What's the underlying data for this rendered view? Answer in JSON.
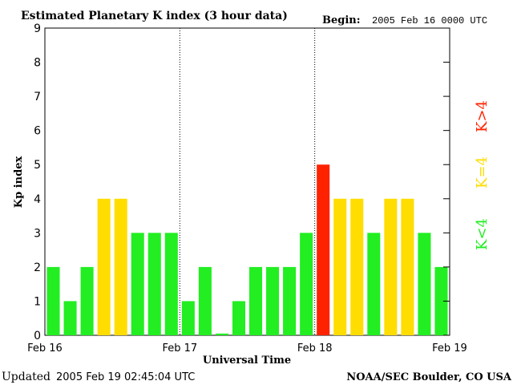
{
  "chart_data": {
    "type": "bar",
    "title": "Estimated Planetary K index (3 hour data)",
    "begin_label": "Begin:",
    "begin_value": "2005 Feb 16 0000 UTC",
    "xlabel": "Universal Time",
    "ylabel": "Kp index",
    "ylim": [
      0,
      9
    ],
    "y_ticks": [
      "0",
      "1",
      "2",
      "3",
      "4",
      "5",
      "6",
      "7",
      "8",
      "9"
    ],
    "x_ticks": [
      "Feb 16",
      "Feb 17",
      "Feb 18",
      "Feb 19"
    ],
    "day_dividers": true,
    "values": [
      2,
      1,
      2,
      4,
      4,
      3,
      3,
      3,
      1,
      2,
      0.05,
      1,
      2,
      2,
      2,
      3,
      5,
      4,
      4,
      3,
      4,
      4,
      3,
      2
    ],
    "legend": [
      {
        "label": "K<4",
        "color": "#22ee22"
      },
      {
        "label": "K=4",
        "color": "#ffdd00"
      },
      {
        "label": "K>4",
        "color": "#ff2200"
      }
    ],
    "colors": {
      "low": "#22ee22",
      "equal": "#ffdd00",
      "high": "#ff2200"
    }
  },
  "footer": {
    "updated_label": "Updated",
    "updated_value": "2005 Feb 19 02:45:04 UTC",
    "source": "NOAA/SEC Boulder, CO USA"
  }
}
